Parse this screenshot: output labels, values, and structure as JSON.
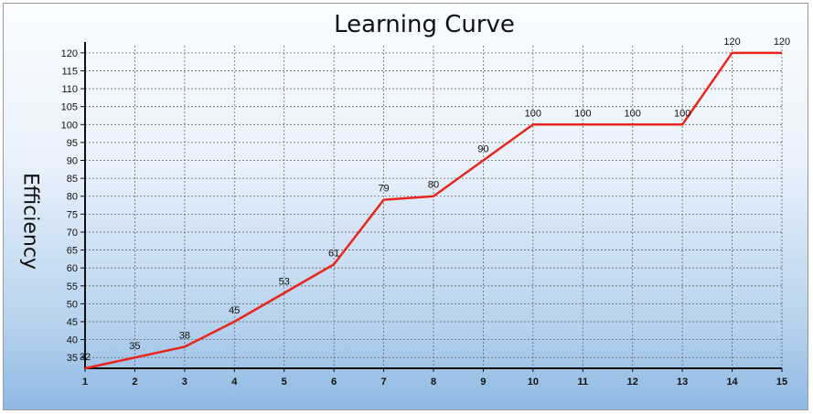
{
  "chart_data": {
    "type": "line",
    "title": "Learning Curve",
    "xlabel": "",
    "ylabel": "Efficiency",
    "x": [
      1,
      2,
      3,
      4,
      5,
      6,
      7,
      8,
      9,
      10,
      11,
      12,
      13,
      14,
      15
    ],
    "series": [
      {
        "values": [
          32,
          35,
          38,
          45,
          53,
          61,
          79,
          80,
          90,
          100,
          100,
          100,
          100,
          120,
          120
        ]
      }
    ],
    "xticks": [
      1,
      2,
      3,
      4,
      5,
      6,
      7,
      8,
      9,
      10,
      11,
      12,
      13,
      14,
      15
    ],
    "yticks": [
      35,
      40,
      45,
      50,
      55,
      60,
      65,
      70,
      75,
      80,
      85,
      90,
      95,
      100,
      105,
      110,
      115,
      120
    ],
    "xlim": [
      1,
      15
    ],
    "ylim": [
      32,
      122
    ],
    "grid": true,
    "line_color": "#e8261c"
  }
}
